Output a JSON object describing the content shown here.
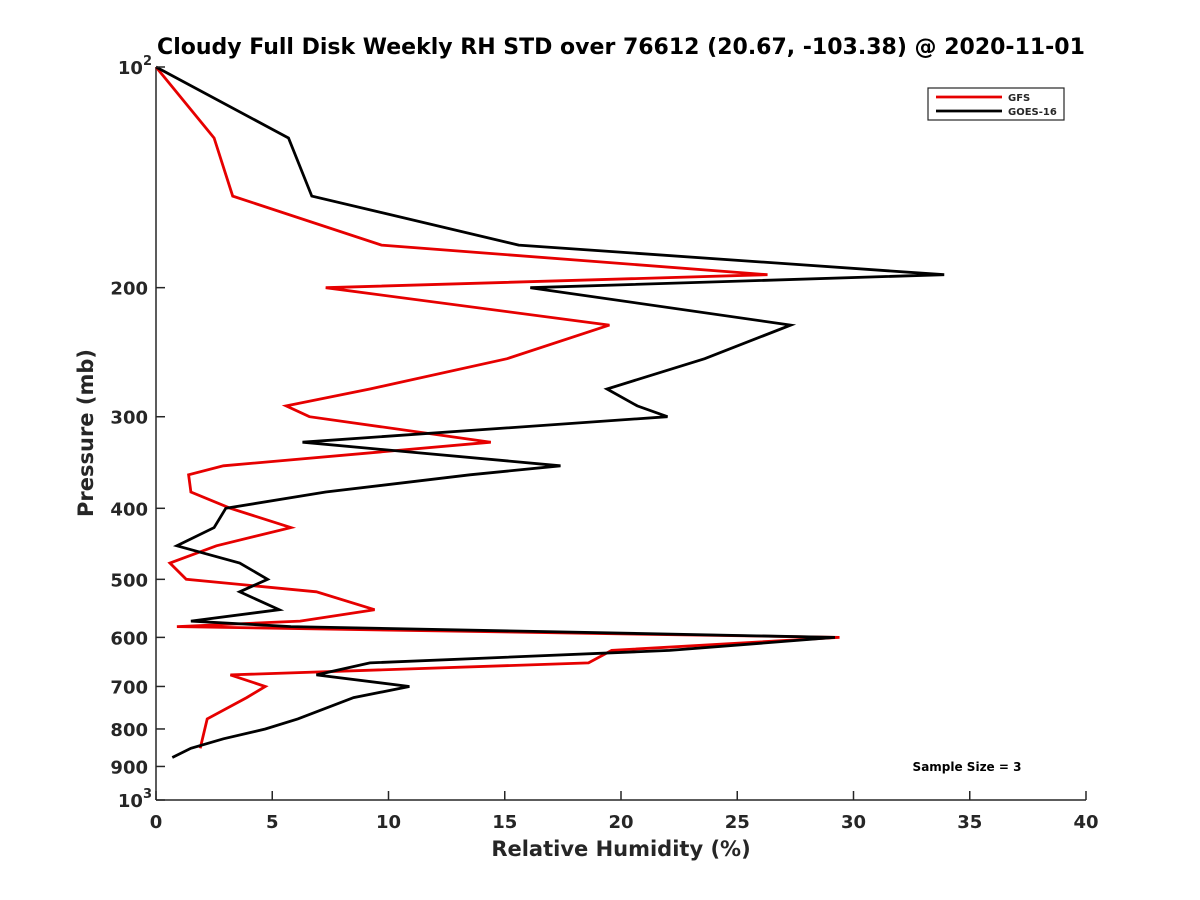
{
  "chart_data": {
    "type": "line",
    "title": "Cloudy Full Disk Weekly RH STD over 76612 (20.67, -103.38) @ 2020-11-01",
    "xlabel": "Relative Humidity (%)",
    "ylabel": "Pressure (mb)",
    "xlim": [
      0,
      40
    ],
    "ylim": [
      100,
      1000
    ],
    "yscale": "log",
    "y_reversed": true,
    "grid": false,
    "x_ticks": [
      0,
      5,
      10,
      15,
      20,
      25,
      30,
      35,
      40
    ],
    "x_tick_labels": [
      "0",
      "5",
      "10",
      "15",
      "20",
      "25",
      "30",
      "35",
      "40"
    ],
    "y_ticks": [
      {
        "value": 100,
        "base": "10",
        "exp": "2"
      },
      {
        "value": 200,
        "label": "200"
      },
      {
        "value": 300,
        "label": "300"
      },
      {
        "value": 400,
        "label": "400"
      },
      {
        "value": 500,
        "label": "500"
      },
      {
        "value": 600,
        "label": "600"
      },
      {
        "value": 700,
        "label": "700"
      },
      {
        "value": 800,
        "label": "800"
      },
      {
        "value": 900,
        "label": "900"
      },
      {
        "value": 1000,
        "base": "10",
        "exp": "3"
      }
    ],
    "legend_position": "top-right",
    "annotation": "Sample Size = 3",
    "series": [
      {
        "name": "GFS",
        "color": "#e60000",
        "points": [
          [
            0.0,
            100
          ],
          [
            2.5,
            125
          ],
          [
            3.3,
            150
          ],
          [
            9.7,
            175
          ],
          [
            26.3,
            192
          ],
          [
            7.3,
            200
          ],
          [
            19.5,
            225
          ],
          [
            15.1,
            250
          ],
          [
            9.2,
            275
          ],
          [
            5.6,
            290
          ],
          [
            6.6,
            300
          ],
          [
            14.4,
            325
          ],
          [
            2.9,
            350
          ],
          [
            1.4,
            360
          ],
          [
            1.5,
            380
          ],
          [
            3.2,
            400
          ],
          [
            5.8,
            425
          ],
          [
            2.6,
            450
          ],
          [
            0.6,
            475
          ],
          [
            1.3,
            500
          ],
          [
            6.9,
            520
          ],
          [
            9.4,
            550
          ],
          [
            6.2,
            570
          ],
          [
            0.9,
            580
          ],
          [
            29.4,
            600
          ],
          [
            19.6,
            625
          ],
          [
            18.6,
            650
          ],
          [
            3.2,
            675
          ],
          [
            4.7,
            700
          ],
          [
            3.9,
            725
          ],
          [
            2.2,
            775
          ],
          [
            1.9,
            850
          ]
        ]
      },
      {
        "name": "GOES-16",
        "color": "#000000",
        "points": [
          [
            0.0,
            100
          ],
          [
            5.7,
            125
          ],
          [
            6.7,
            150
          ],
          [
            15.6,
            175
          ],
          [
            33.9,
            192
          ],
          [
            16.1,
            200
          ],
          [
            27.3,
            225
          ],
          [
            23.6,
            250
          ],
          [
            19.4,
            275
          ],
          [
            20.7,
            290
          ],
          [
            22.0,
            300
          ],
          [
            6.3,
            325
          ],
          [
            17.4,
            350
          ],
          [
            13.5,
            360
          ],
          [
            7.3,
            380
          ],
          [
            3.0,
            400
          ],
          [
            2.5,
            425
          ],
          [
            0.9,
            450
          ],
          [
            3.6,
            475
          ],
          [
            4.8,
            500
          ],
          [
            3.6,
            520
          ],
          [
            5.3,
            550
          ],
          [
            1.5,
            570
          ],
          [
            5.8,
            580
          ],
          [
            29.2,
            600
          ],
          [
            22.1,
            625
          ],
          [
            9.2,
            650
          ],
          [
            6.9,
            675
          ],
          [
            10.9,
            700
          ],
          [
            8.5,
            725
          ],
          [
            6.1,
            775
          ],
          [
            4.7,
            800
          ],
          [
            2.9,
            825
          ],
          [
            1.5,
            850
          ],
          [
            0.7,
            875
          ]
        ]
      }
    ]
  }
}
